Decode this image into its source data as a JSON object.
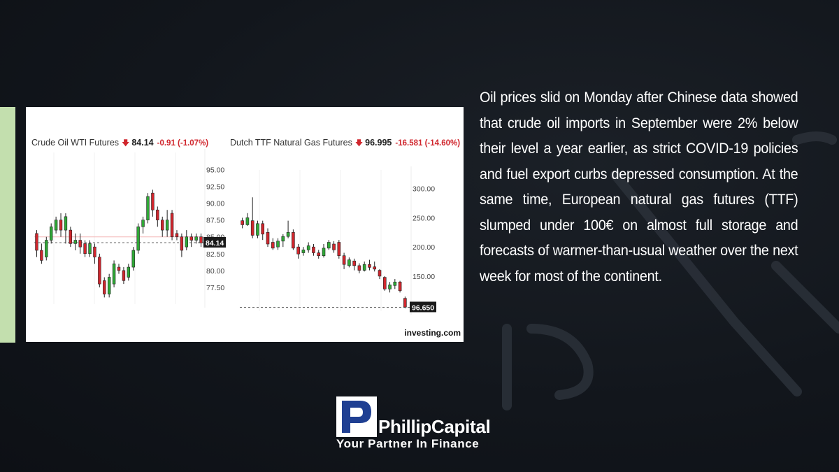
{
  "paragraph": "Oil prices slid on Monday after Chinese data showed that crude oil imports in September were 2% below their level a year earlier, as strict COVID-19 policies and fuel export curbs depressed consumption. At the same time, European natural gas futures (TTF) slumped under 100€ on almost full storage and forecasts of warmer-than-usual weather over the next week for most of the continent.",
  "source": "investing.com",
  "logo": {
    "brand": "PhillipCapital",
    "tagline": "Your Partner In Finance",
    "mark": "P"
  },
  "colors": {
    "up": "#2fa836",
    "down": "#d0262d",
    "accent": "#c3dfae",
    "logo_blue": "#1f3f92"
  },
  "chart_data": [
    {
      "type": "candlestick",
      "name": "Crude Oil WTI Futures",
      "price": "84.14",
      "change": "-0.91 (-1.07%)",
      "last_label": "84.14",
      "ylim": [
        75,
        96.5
      ],
      "yticks": [
        "95.00",
        "92.50",
        "90.00",
        "87.50",
        "85.00",
        "82.50",
        "80.00",
        "77.50"
      ],
      "reference_line": 85.0,
      "last_price_line": 84.14,
      "candles": [
        [
          85.5,
          83.0,
          86.0,
          82.0
        ],
        [
          83.0,
          81.5,
          84.0,
          81.0
        ],
        [
          82.0,
          84.5,
          85.0,
          81.5
        ],
        [
          84.5,
          86.5,
          87.0,
          84.0
        ],
        [
          86.0,
          87.5,
          88.0,
          85.5
        ],
        [
          87.5,
          86.0,
          88.5,
          85.0
        ],
        [
          86.0,
          88.0,
          88.5,
          84.0
        ],
        [
          86.0,
          84.0,
          86.5,
          83.5
        ],
        [
          84.0,
          84.5,
          85.5,
          83.0
        ],
        [
          84.5,
          83.5,
          85.5,
          82.5
        ],
        [
          84.0,
          82.5,
          84.5,
          82.0
        ],
        [
          82.5,
          84.0,
          84.5,
          82.0
        ],
        [
          83.5,
          82.0,
          84.0,
          81.0
        ],
        [
          82.0,
          78.0,
          82.5,
          77.5
        ],
        [
          78.5,
          76.5,
          79.0,
          76.0
        ],
        [
          76.5,
          79.0,
          79.5,
          76.0
        ],
        [
          78.0,
          81.0,
          81.5,
          77.5
        ],
        [
          80.5,
          80.0,
          81.0,
          79.5
        ],
        [
          80.0,
          78.5,
          80.5,
          78.0
        ],
        [
          79.0,
          80.5,
          81.0,
          78.5
        ],
        [
          80.5,
          83.0,
          83.5,
          80.0
        ],
        [
          83.0,
          86.5,
          87.0,
          82.5
        ],
        [
          86.5,
          87.5,
          88.0,
          85.5
        ],
        [
          87.5,
          91.0,
          91.5,
          87.0
        ],
        [
          91.5,
          89.0,
          92.0,
          88.0
        ],
        [
          89.0,
          87.5,
          89.5,
          86.5
        ],
        [
          87.5,
          86.0,
          88.0,
          85.0
        ],
        [
          86.0,
          87.5,
          89.0,
          85.0
        ],
        [
          88.5,
          85.0,
          89.0,
          84.5
        ],
        [
          85.5,
          85.0,
          86.0,
          84.5
        ],
        [
          85.0,
          83.0,
          85.5,
          82.0
        ],
        [
          83.5,
          85.0,
          86.0,
          83.0
        ],
        [
          85.0,
          84.5,
          85.5,
          83.5
        ],
        [
          84.5,
          85.0,
          85.5,
          84.0
        ],
        [
          85.0,
          84.1,
          85.5,
          83.5
        ]
      ]
    },
    {
      "type": "candlestick",
      "name": "Dutch TTF Natural Gas Futures",
      "price": "96.995",
      "change": "-16.581 (-14.60%)",
      "last_label": "96.650",
      "ylim": [
        90,
        320
      ],
      "yticks": [
        "300.00",
        "250.00",
        "200.00",
        "150.00"
      ],
      "last_price_line": 96.65,
      "candles": [
        [
          245,
          238,
          250,
          232
        ],
        [
          238,
          250,
          258,
          236
        ],
        [
          245,
          220,
          285,
          215
        ],
        [
          220,
          240,
          245,
          215
        ],
        [
          240,
          222,
          245,
          212
        ],
        [
          225,
          205,
          232,
          200
        ],
        [
          208,
          198,
          215,
          195
        ],
        [
          200,
          210,
          215,
          195
        ],
        [
          210,
          218,
          222,
          200
        ],
        [
          218,
          225,
          245,
          215
        ],
        [
          225,
          198,
          230,
          195
        ],
        [
          200,
          188,
          205,
          180
        ],
        [
          190,
          195,
          200,
          185
        ],
        [
          195,
          202,
          208,
          190
        ],
        [
          200,
          190,
          205,
          185
        ],
        [
          190,
          185,
          195,
          180
        ],
        [
          185,
          198,
          205,
          182
        ],
        [
          198,
          208,
          212,
          195
        ],
        [
          205,
          195,
          210,
          190
        ],
        [
          208,
          185,
          212,
          180
        ],
        [
          185,
          170,
          190,
          162
        ],
        [
          168,
          178,
          182,
          165
        ],
        [
          176,
          168,
          180,
          160
        ],
        [
          168,
          160,
          172,
          155
        ],
        [
          160,
          170,
          175,
          158
        ],
        [
          170,
          165,
          178,
          160
        ],
        [
          166,
          162,
          175,
          158
        ],
        [
          160,
          150,
          162,
          145
        ],
        [
          148,
          128,
          150,
          125
        ],
        [
          128,
          135,
          140,
          122
        ],
        [
          134,
          140,
          145,
          128
        ],
        [
          140,
          125,
          142,
          122
        ],
        [
          112,
          97,
          115,
          95
        ]
      ]
    }
  ]
}
